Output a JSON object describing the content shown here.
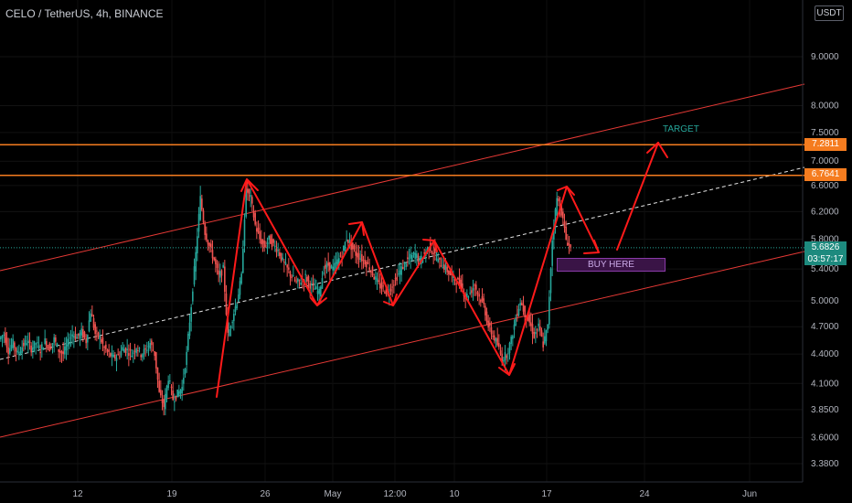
{
  "header": {
    "title": "CELO / TetherUS, 4h, BINANCE",
    "currency": "USDT"
  },
  "annotations": {
    "target": "TARGET",
    "buy_here": "BUY HERE"
  },
  "price_labels": {
    "resistance_upper": "7.2811",
    "resistance_lower": "6.7641",
    "current": "5.6826",
    "countdown": "03:57:17"
  },
  "chart_data": {
    "type": "line",
    "title": "CELO / TetherUS, 4h, BINANCE",
    "y_scale": "log",
    "ylim": [
      3.2,
      10.8
    ],
    "y_ticks": [
      "9.0000",
      "8.0000",
      "7.5000",
      "7.0000",
      "6.6000",
      "6.2000",
      "5.8000",
      "5.4000",
      "5.0000",
      "4.7000",
      "4.4000",
      "4.1000",
      "3.8500",
      "3.6000",
      "3.3800"
    ],
    "x_ticks": [
      "12",
      "19",
      "26",
      "May",
      "12:00",
      "10",
      "17",
      "24",
      "Jun"
    ],
    "colors": {
      "up": "#26a69a",
      "down": "#ef5350",
      "level": "#f57c1f",
      "channel": "#e53935",
      "drawing": "#ff1a1a",
      "dashed": "#e0e0e0"
    },
    "series": [
      {
        "name": "",
        "values": [
          [
            0,
            4.56
          ],
          [
            5,
            4.62
          ],
          [
            10,
            4.44
          ],
          [
            15,
            4.52
          ],
          [
            20,
            4.4
          ],
          [
            25,
            4.48
          ],
          [
            30,
            4.54
          ],
          [
            35,
            4.46
          ],
          [
            40,
            4.52
          ],
          [
            45,
            4.44
          ],
          [
            50,
            4.54
          ],
          [
            55,
            4.46
          ],
          [
            60,
            4.56
          ],
          [
            65,
            4.44
          ],
          [
            70,
            4.4
          ],
          [
            75,
            4.52
          ],
          [
            80,
            4.62
          ],
          [
            85,
            4.58
          ],
          [
            90,
            4.64
          ],
          [
            95,
            4.54
          ],
          [
            100,
            4.88
          ],
          [
            105,
            4.62
          ],
          [
            110,
            4.58
          ],
          [
            115,
            4.46
          ],
          [
            120,
            4.4
          ],
          [
            125,
            4.36
          ],
          [
            130,
            4.38
          ],
          [
            135,
            4.46
          ],
          [
            140,
            4.44
          ],
          [
            145,
            4.4
          ],
          [
            150,
            4.48
          ],
          [
            155,
            4.4
          ],
          [
            160,
            4.44
          ],
          [
            165,
            4.52
          ],
          [
            170,
            4.4
          ],
          [
            175,
            4.0
          ],
          [
            180,
            3.88
          ],
          [
            185,
            4.16
          ],
          [
            190,
            3.95
          ],
          [
            195,
            4.0
          ],
          [
            200,
            4.06
          ],
          [
            205,
            4.4
          ],
          [
            210,
            4.95
          ],
          [
            215,
            5.6
          ],
          [
            220,
            6.4
          ],
          [
            225,
            5.9
          ],
          [
            230,
            5.7
          ],
          [
            235,
            5.52
          ],
          [
            240,
            5.3
          ],
          [
            245,
            5.4
          ],
          [
            250,
            4.6
          ],
          [
            255,
            4.8
          ],
          [
            260,
            5.0
          ],
          [
            265,
            5.3
          ],
          [
            270,
            6.55
          ],
          [
            275,
            6.4
          ],
          [
            280,
            6.0
          ],
          [
            285,
            5.8
          ],
          [
            290,
            5.7
          ],
          [
            295,
            5.8
          ],
          [
            300,
            5.72
          ],
          [
            305,
            5.65
          ],
          [
            310,
            5.5
          ],
          [
            315,
            5.4
          ],
          [
            320,
            5.3
          ],
          [
            325,
            5.22
          ],
          [
            330,
            5.25
          ],
          [
            335,
            5.3
          ],
          [
            340,
            5.2
          ],
          [
            345,
            5.15
          ],
          [
            350,
            5.1
          ],
          [
            355,
            5.4
          ],
          [
            360,
            5.45
          ],
          [
            365,
            5.4
          ],
          [
            370,
            5.5
          ],
          [
            375,
            5.6
          ],
          [
            380,
            5.82
          ],
          [
            385,
            5.7
          ],
          [
            390,
            5.6
          ],
          [
            395,
            5.55
          ],
          [
            400,
            5.5
          ],
          [
            405,
            5.42
          ],
          [
            410,
            5.3
          ],
          [
            415,
            5.2
          ],
          [
            420,
            5.15
          ],
          [
            425,
            5.1
          ],
          [
            430,
            5.2
          ],
          [
            435,
            5.3
          ],
          [
            440,
            5.4
          ],
          [
            445,
            5.5
          ],
          [
            450,
            5.55
          ],
          [
            455,
            5.6
          ],
          [
            460,
            5.5
          ],
          [
            465,
            5.6
          ],
          [
            470,
            5.7
          ],
          [
            475,
            5.62
          ],
          [
            480,
            5.5
          ],
          [
            485,
            5.45
          ],
          [
            490,
            5.38
          ],
          [
            495,
            5.3
          ],
          [
            500,
            5.25
          ],
          [
            505,
            5.2
          ],
          [
            510,
            5.05
          ],
          [
            515,
            5.1
          ],
          [
            520,
            5.2
          ],
          [
            525,
            5.05
          ],
          [
            530,
            4.95
          ],
          [
            535,
            4.7
          ],
          [
            540,
            4.6
          ],
          [
            545,
            4.5
          ],
          [
            550,
            4.35
          ],
          [
            555,
            4.4
          ],
          [
            560,
            4.55
          ],
          [
            565,
            4.8
          ],
          [
            570,
            5.0
          ],
          [
            575,
            4.85
          ],
          [
            580,
            4.75
          ],
          [
            585,
            4.6
          ],
          [
            590,
            4.7
          ],
          [
            595,
            4.5
          ],
          [
            600,
            4.7
          ],
          [
            605,
            5.8
          ],
          [
            610,
            6.4
          ],
          [
            615,
            6.2
          ],
          [
            620,
            5.8
          ],
          [
            625,
            5.68
          ]
        ]
      }
    ]
  }
}
